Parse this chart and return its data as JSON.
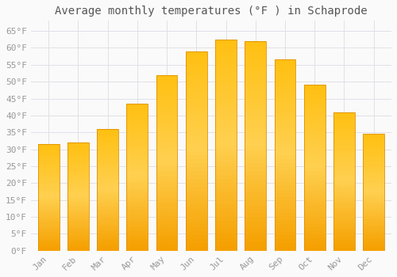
{
  "title": "Average monthly temperatures (°F ) in Schaprode",
  "months": [
    "Jan",
    "Feb",
    "Mar",
    "Apr",
    "May",
    "Jun",
    "Jul",
    "Aug",
    "Sep",
    "Oct",
    "Nov",
    "Dec"
  ],
  "values": [
    31.5,
    32.0,
    36.0,
    43.5,
    52.0,
    59.0,
    62.5,
    62.0,
    56.5,
    49.0,
    41.0,
    34.5
  ],
  "bar_color_top": "#FFD966",
  "bar_color_bottom": "#F5A800",
  "bar_color_mid": "#FFC020",
  "bar_edge_color": "#E09000",
  "background_color": "#FAFAFA",
  "grid_color": "#E0E0E8",
  "text_color": "#999999",
  "title_color": "#555555",
  "ylim": [
    0,
    68
  ],
  "yticks": [
    0,
    5,
    10,
    15,
    20,
    25,
    30,
    35,
    40,
    45,
    50,
    55,
    60,
    65
  ],
  "ylabel_suffix": "°F",
  "title_fontsize": 10,
  "tick_fontsize": 8,
  "font_family": "monospace"
}
